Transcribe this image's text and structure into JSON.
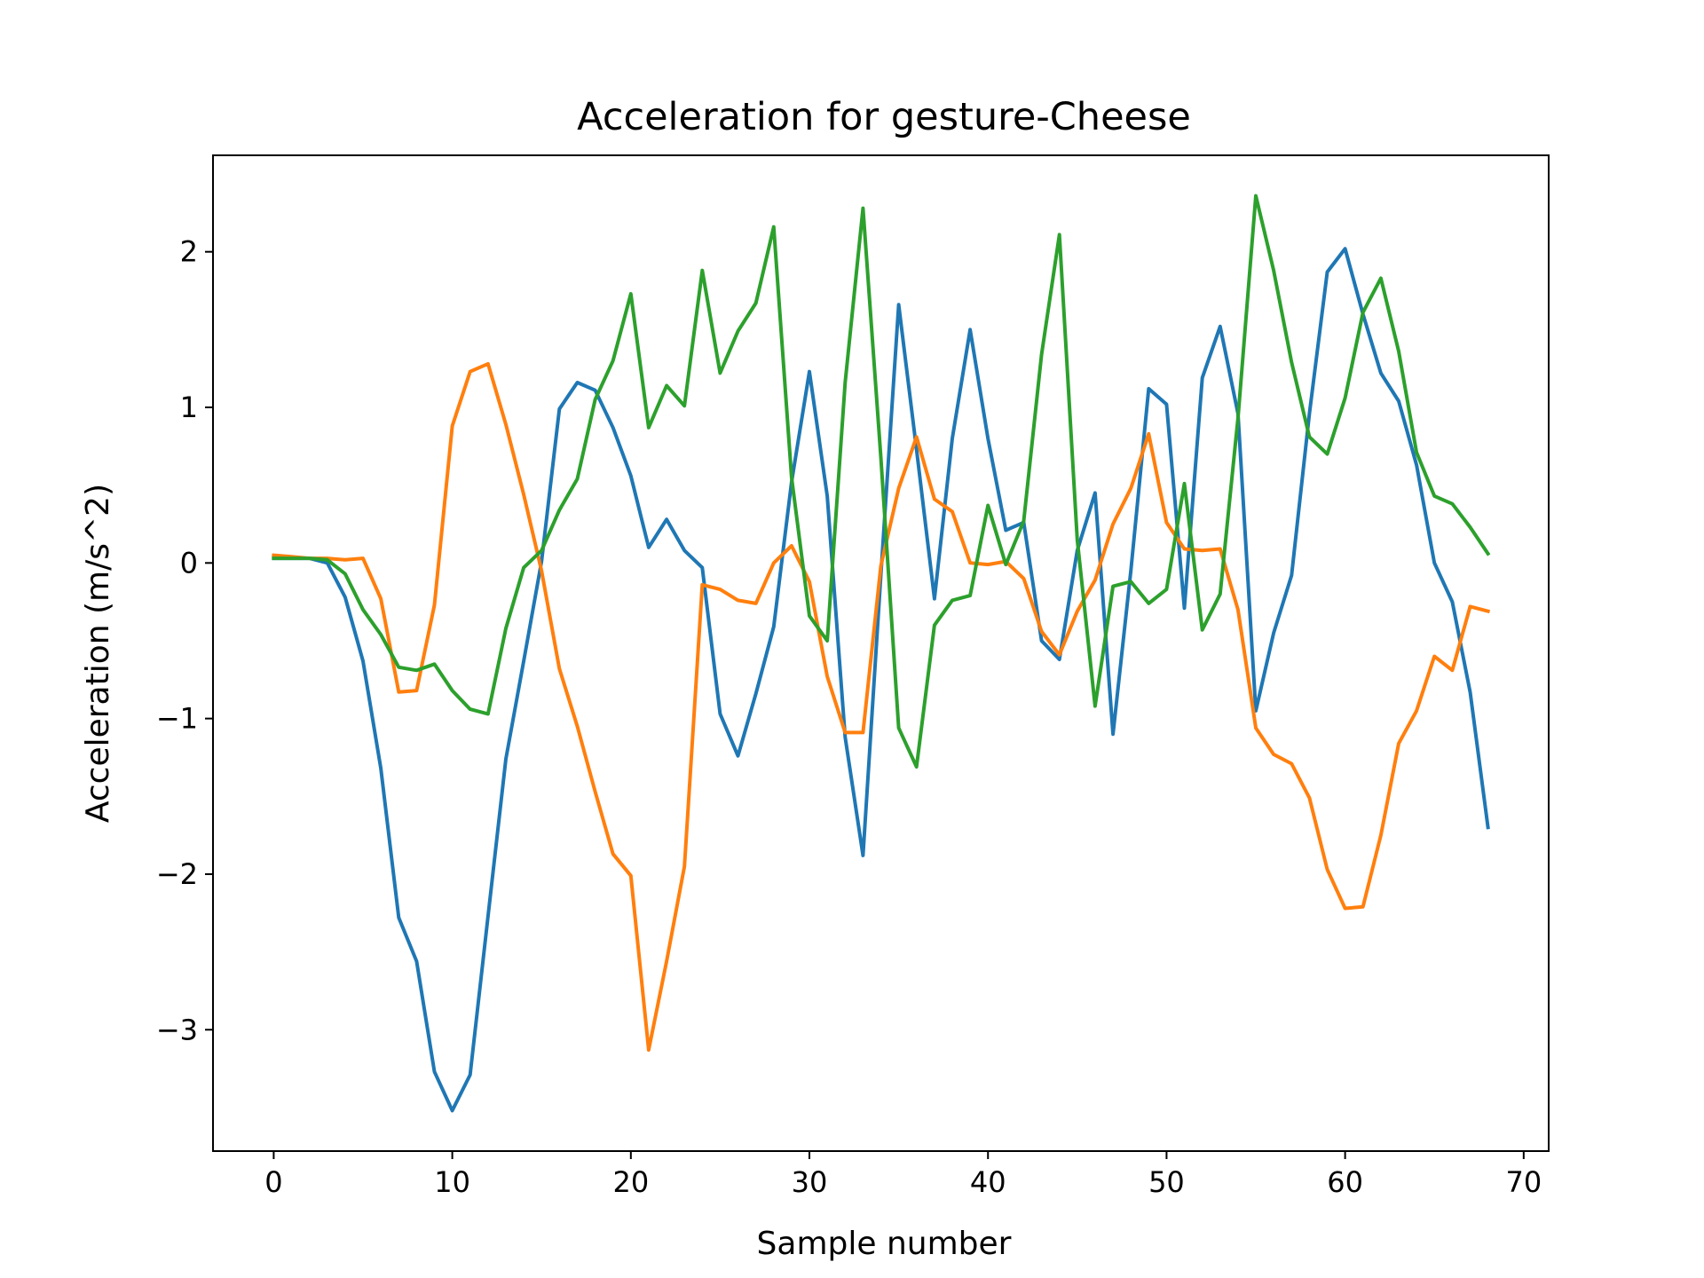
{
  "chart_data": {
    "type": "line",
    "title": "Acceleration for gesture-Cheese",
    "xlabel": "Sample number",
    "ylabel": "Acceleration (m/s^2)",
    "xlim": [
      -3.4,
      71.4
    ],
    "ylim": [
      -3.78,
      2.62
    ],
    "xticks": [
      0,
      10,
      20,
      30,
      40,
      50,
      60,
      70
    ],
    "xtick_labels": [
      "0",
      "10",
      "20",
      "30",
      "40",
      "50",
      "60",
      "70"
    ],
    "yticks": [
      -3,
      -2,
      -1,
      0,
      1,
      2
    ],
    "ytick_labels": [
      "−3",
      "−2",
      "−1",
      "0",
      "1",
      "2"
    ],
    "grid": false,
    "legend": "none",
    "x": [
      0,
      1,
      2,
      3,
      4,
      5,
      6,
      7,
      8,
      9,
      10,
      11,
      12,
      13,
      14,
      15,
      16,
      17,
      18,
      19,
      20,
      21,
      22,
      23,
      24,
      25,
      26,
      27,
      28,
      29,
      30,
      31,
      32,
      33,
      34,
      35,
      36,
      37,
      38,
      39,
      40,
      41,
      42,
      43,
      44,
      45,
      46,
      47,
      48,
      49,
      50,
      51,
      52,
      53,
      54,
      55,
      56,
      57,
      58,
      59,
      60,
      61,
      62,
      63,
      64,
      65,
      66,
      67,
      68
    ],
    "series": [
      {
        "color": "#1f77b4",
        "values": [
          0.03,
          0.03,
          0.03,
          0.0,
          -0.22,
          -0.63,
          -1.32,
          -2.28,
          -2.56,
          -3.27,
          -3.52,
          -3.29,
          -2.27,
          -1.26,
          -0.63,
          0.01,
          0.99,
          1.16,
          1.11,
          0.87,
          0.56,
          0.1,
          0.28,
          0.08,
          -0.03,
          -0.97,
          -1.24,
          -0.84,
          -0.41,
          0.52,
          1.23,
          0.43,
          -1.12,
          -1.88,
          -0.08,
          1.66,
          0.73,
          -0.23,
          0.8,
          1.5,
          0.8,
          0.21,
          0.26,
          -0.5,
          -0.62,
          0.08,
          0.45,
          -1.1,
          -0.05,
          1.12,
          1.02,
          -0.29,
          1.19,
          1.52,
          0.96,
          -0.95,
          -0.45,
          -0.08,
          0.96,
          1.87,
          2.02,
          1.6,
          1.22,
          1.04,
          0.63,
          0.0,
          -0.25,
          -0.83,
          -1.7
        ]
      },
      {
        "color": "#ff7f0e",
        "values": [
          0.05,
          0.04,
          0.03,
          0.03,
          0.02,
          0.03,
          -0.23,
          -0.83,
          -0.82,
          -0.27,
          0.88,
          1.23,
          1.28,
          0.89,
          0.44,
          -0.05,
          -0.68,
          -1.05,
          -1.47,
          -1.87,
          -2.01,
          -3.13,
          -2.56,
          -1.95,
          -0.14,
          -0.17,
          -0.24,
          -0.26,
          0.0,
          0.11,
          -0.12,
          -0.73,
          -1.09,
          -1.09,
          -0.02,
          0.48,
          0.81,
          0.41,
          0.33,
          0.0,
          -0.01,
          0.01,
          -0.1,
          -0.44,
          -0.59,
          -0.31,
          -0.11,
          0.25,
          0.48,
          0.83,
          0.26,
          0.09,
          0.08,
          0.09,
          -0.3,
          -1.06,
          -1.23,
          -1.29,
          -1.51,
          -1.97,
          -2.22,
          -2.21,
          -1.75,
          -1.16,
          -0.95,
          -0.6,
          -0.69,
          -0.28,
          -0.31
        ]
      },
      {
        "color": "#2ca02c",
        "values": [
          0.03,
          0.03,
          0.03,
          0.02,
          -0.07,
          -0.3,
          -0.46,
          -0.67,
          -0.69,
          -0.65,
          -0.82,
          -0.94,
          -0.97,
          -0.42,
          -0.03,
          0.08,
          0.34,
          0.54,
          1.05,
          1.3,
          1.73,
          0.87,
          1.14,
          1.01,
          1.88,
          1.22,
          1.49,
          1.67,
          2.16,
          0.55,
          -0.34,
          -0.5,
          1.16,
          2.28,
          0.68,
          -1.06,
          -1.31,
          -0.4,
          -0.24,
          -0.21,
          0.37,
          -0.01,
          0.27,
          1.34,
          2.11,
          0.15,
          -0.92,
          -0.15,
          -0.12,
          -0.26,
          -0.17,
          0.51,
          -0.43,
          -0.2,
          0.93,
          2.36,
          1.88,
          1.29,
          0.81,
          0.7,
          1.06,
          1.61,
          1.83,
          1.36,
          0.71,
          0.43,
          0.38,
          0.23,
          0.06
        ]
      }
    ]
  }
}
